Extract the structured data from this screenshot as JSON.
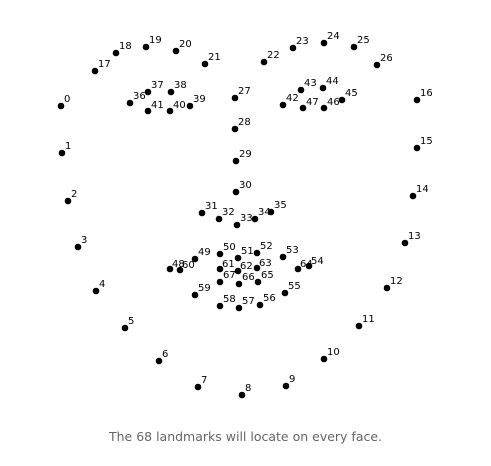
{
  "caption": "The 68 landmarks will locate on every face.",
  "colors": {
    "dot": "#000000",
    "label": "#000000",
    "caption": "#666666",
    "background": "#ffffff"
  },
  "landmarks": [
    {
      "id": "0",
      "label": "0"
    },
    {
      "id": "1",
      "label": "1"
    },
    {
      "id": "2",
      "label": "2"
    },
    {
      "id": "3",
      "label": "3"
    },
    {
      "id": "4",
      "label": "4"
    },
    {
      "id": "5",
      "label": "5"
    },
    {
      "id": "6",
      "label": "6"
    },
    {
      "id": "7",
      "label": "7"
    },
    {
      "id": "8",
      "label": "8"
    },
    {
      "id": "9",
      "label": "9"
    },
    {
      "id": "10",
      "label": "10"
    },
    {
      "id": "11",
      "label": "11"
    },
    {
      "id": "12",
      "label": "12"
    },
    {
      "id": "13",
      "label": "13"
    },
    {
      "id": "14",
      "label": "14"
    },
    {
      "id": "15",
      "label": "15"
    },
    {
      "id": "16",
      "label": "16"
    },
    {
      "id": "17",
      "label": "17"
    },
    {
      "id": "18",
      "label": "18"
    },
    {
      "id": "19",
      "label": "19"
    },
    {
      "id": "20",
      "label": "20"
    },
    {
      "id": "21",
      "label": "21"
    },
    {
      "id": "22",
      "label": "22"
    },
    {
      "id": "23",
      "label": "23"
    },
    {
      "id": "24",
      "label": "24"
    },
    {
      "id": "25",
      "label": "25"
    },
    {
      "id": "26",
      "label": "26"
    },
    {
      "id": "27",
      "label": "27"
    },
    {
      "id": "28",
      "label": "28"
    },
    {
      "id": "29",
      "label": "29"
    },
    {
      "id": "30",
      "label": "30"
    },
    {
      "id": "31",
      "label": "31"
    },
    {
      "id": "32",
      "label": "32"
    },
    {
      "id": "33",
      "label": "33"
    },
    {
      "id": "34",
      "label": "34"
    },
    {
      "id": "35",
      "label": "35"
    },
    {
      "id": "36",
      "label": "36"
    },
    {
      "id": "37",
      "label": "37"
    },
    {
      "id": "38",
      "label": "38"
    },
    {
      "id": "39",
      "label": "39"
    },
    {
      "id": "40",
      "label": "40"
    },
    {
      "id": "41",
      "label": "41"
    },
    {
      "id": "42",
      "label": "42"
    },
    {
      "id": "43",
      "label": "43"
    },
    {
      "id": "44",
      "label": "44"
    },
    {
      "id": "45",
      "label": "45"
    },
    {
      "id": "46",
      "label": "46"
    },
    {
      "id": "47",
      "label": "47"
    },
    {
      "id": "48",
      "label": "48"
    },
    {
      "id": "49",
      "label": "49"
    },
    {
      "id": "50",
      "label": "50"
    },
    {
      "id": "51",
      "label": "51"
    },
    {
      "id": "52",
      "label": "52"
    },
    {
      "id": "53",
      "label": "53"
    },
    {
      "id": "54",
      "label": "54"
    },
    {
      "id": "55",
      "label": "55"
    },
    {
      "id": "56",
      "label": "56"
    },
    {
      "id": "57",
      "label": "57"
    },
    {
      "id": "58",
      "label": "58"
    },
    {
      "id": "59",
      "label": "59"
    },
    {
      "id": "60",
      "label": "60"
    },
    {
      "id": "61",
      "label": "61"
    },
    {
      "id": "62",
      "label": "62"
    },
    {
      "id": "63",
      "label": "63"
    },
    {
      "id": "64",
      "label": "64"
    },
    {
      "id": "65",
      "label": "65"
    },
    {
      "id": "66",
      "label": "66"
    },
    {
      "id": "67",
      "label": "67"
    }
  ]
}
